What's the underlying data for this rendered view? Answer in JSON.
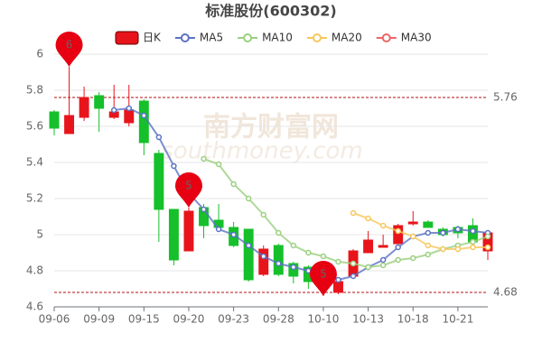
{
  "chart_data": {
    "type": "candlestick",
    "title": "标准股份(600302)",
    "watermark": [
      "南方财富网",
      "southmoney.com"
    ],
    "categories": [
      "09-06",
      null,
      null,
      "09-09",
      null,
      null,
      "09-15",
      null,
      null,
      "09-20",
      null,
      null,
      "09-23",
      null,
      null,
      "09-28",
      null,
      null,
      "10-10",
      null,
      null,
      "10-13",
      null,
      null,
      "10-18",
      null,
      null,
      "10-21",
      null,
      null
    ],
    "ylim": [
      4.6,
      6
    ],
    "yticks": [
      4.6,
      4.8,
      5,
      5.2,
      5.4,
      5.6,
      5.8,
      6
    ],
    "grid": true,
    "candles": {
      "name": "日K",
      "up_color": "#e8141b",
      "down_color": "#15c02a",
      "open": [
        5.68,
        5.56,
        5.65,
        5.77,
        5.65,
        5.62,
        5.74,
        5.45,
        5.14,
        4.91,
        5.15,
        5.08,
        5.04,
        5.03,
        4.78,
        4.94,
        4.84,
        4.82,
        4.7,
        4.68,
        4.77,
        4.9,
        4.93,
        4.95,
        5.06,
        5.07,
        5.03,
        5.04,
        5.05,
        4.91
      ],
      "close": [
        5.59,
        5.66,
        5.76,
        5.7,
        5.68,
        5.69,
        5.51,
        5.14,
        4.86,
        5.13,
        5.05,
        5.04,
        4.94,
        4.75,
        4.92,
        4.78,
        4.77,
        4.74,
        4.76,
        4.74,
        4.91,
        4.97,
        4.94,
        5.05,
        5.07,
        5.04,
        5.0,
        5.01,
        4.96,
        5.01
      ],
      "high": [
        5.69,
        5.93,
        5.82,
        5.79,
        5.83,
        5.83,
        5.75,
        5.47,
        5.14,
        5.15,
        5.17,
        5.17,
        5.07,
        5.03,
        4.94,
        4.95,
        4.85,
        4.83,
        4.78,
        4.76,
        4.92,
        5.02,
        5.0,
        5.06,
        5.13,
        5.08,
        5.04,
        5.05,
        5.09,
        5.02
      ],
      "low": [
        5.55,
        5.56,
        5.63,
        5.57,
        5.64,
        5.6,
        5.44,
        4.96,
        4.83,
        4.91,
        4.98,
        5.02,
        4.93,
        4.74,
        4.77,
        4.77,
        4.73,
        4.7,
        4.66,
        4.67,
        4.76,
        4.9,
        4.93,
        4.95,
        5.05,
        5.04,
        4.99,
        4.98,
        4.95,
        4.86
      ]
    },
    "series": [
      {
        "name": "MA5",
        "color": "#5b73c4",
        "values": [
          null,
          null,
          null,
          null,
          5.69,
          5.7,
          5.66,
          5.54,
          5.38,
          5.23,
          5.14,
          5.03,
          5.0,
          4.94,
          4.88,
          4.84,
          4.82,
          4.8,
          4.78,
          4.75,
          4.77,
          4.82,
          4.86,
          4.93,
          4.99,
          5.01,
          5.01,
          5.03,
          5.02,
          5.01
        ]
      },
      {
        "name": "MA10",
        "color": "#9bd07f",
        "values": [
          null,
          null,
          null,
          null,
          null,
          null,
          null,
          null,
          null,
          null,
          5.42,
          5.39,
          5.28,
          5.2,
          5.11,
          5.01,
          4.94,
          4.9,
          4.88,
          4.85,
          4.84,
          4.82,
          4.83,
          4.86,
          4.87,
          4.89,
          4.92,
          4.94,
          4.96,
          4.99
        ]
      },
      {
        "name": "MA20",
        "color": "#f7c75c",
        "values": [
          null,
          null,
          null,
          null,
          null,
          null,
          null,
          null,
          null,
          null,
          null,
          null,
          null,
          null,
          null,
          null,
          null,
          null,
          null,
          null,
          5.12,
          5.09,
          5.05,
          5.02,
          4.99,
          4.94,
          4.92,
          4.92,
          4.93,
          4.93
        ]
      },
      {
        "name": "MA30",
        "color": "#ee6666",
        "values": [
          null,
          null,
          null,
          null,
          null,
          null,
          null,
          null,
          null,
          null,
          null,
          null,
          null,
          null,
          null,
          null,
          null,
          null,
          null,
          null,
          null,
          null,
          null,
          null,
          null,
          null,
          null,
          null,
          null,
          null
        ]
      }
    ],
    "mark_lines": [
      5.76,
      4.68
    ],
    "mark_line_color": "#b01010",
    "pin_color": "#e60012",
    "mark_points": [
      {
        "index": 1,
        "value": 5.93,
        "label": "6"
      },
      {
        "index": 9,
        "value": 5.15,
        "label": "5"
      },
      {
        "index": 18,
        "value": 4.66,
        "label": "5"
      }
    ]
  }
}
